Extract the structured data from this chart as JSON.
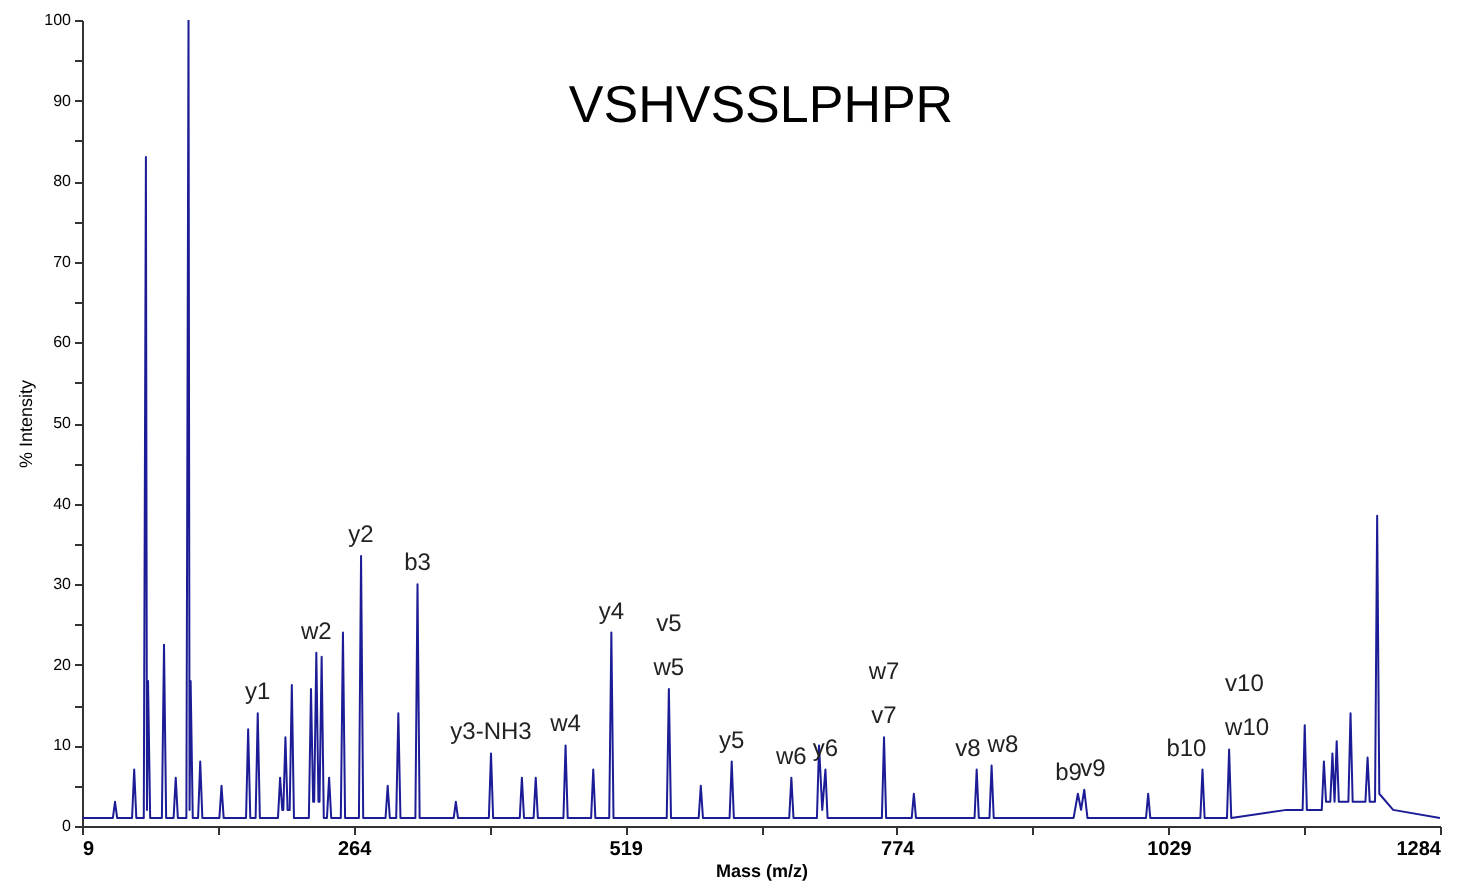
{
  "chart_data": {
    "type": "line",
    "title": "VSHVSSLPHPR",
    "xlabel": "Mass (m/z)",
    "ylabel": "% Intensity",
    "x": [
      9,
      38,
      40,
      42,
      56,
      58,
      60,
      67,
      69,
      70,
      71,
      73,
      84,
      86,
      88,
      95,
      97,
      99,
      107,
      109,
      110,
      111,
      113,
      118,
      120,
      122,
      138,
      140,
      142,
      163,
      165,
      167,
      172,
      174,
      176,
      193,
      195,
      197,
      198,
      200,
      202,
      204,
      206,
      208,
      222,
      224,
      226,
      227,
      229,
      231,
      232,
      234,
      236,
      239,
      241,
      243,
      252,
      254,
      256,
      269,
      271,
      273,
      294,
      296,
      298,
      304,
      306,
      308,
      322,
      324,
      326,
      358,
      360,
      362,
      391,
      393,
      395,
      420,
      422,
      424,
      433,
      435,
      437,
      461,
      463,
      465,
      487,
      489,
      491,
      504,
      506,
      508,
      558,
      560,
      562,
      588,
      590,
      592,
      617,
      619,
      621,
      673,
      675,
      677,
      699,
      701,
      704,
      707,
      709,
      760,
      762,
      764,
      788,
      790,
      792,
      847,
      849,
      851,
      861,
      863,
      865,
      940,
      944,
      947,
      950,
      953,
      1008,
      1010,
      1012,
      1059,
      1061,
      1063,
      1084,
      1086,
      1088,
      1140,
      1155,
      1157,
      1159,
      1173,
      1175,
      1177,
      1181,
      1183,
      1185,
      1187,
      1189,
      1198,
      1200,
      1202,
      1214,
      1216,
      1218,
      1223,
      1225,
      1227,
      1240,
      1284
    ],
    "values": [
      1,
      1,
      3,
      1,
      1,
      7,
      1,
      1,
      83,
      2,
      18,
      1,
      1,
      22.5,
      1,
      1,
      6,
      1,
      1,
      100,
      2,
      18,
      1,
      1,
      8,
      1,
      1,
      5,
      1,
      1,
      12,
      1,
      1,
      14,
      1,
      1,
      6,
      2,
      2,
      11,
      2,
      2,
      17.5,
      1,
      1,
      17,
      3,
      3,
      21.5,
      3,
      3,
      21,
      1,
      1,
      6,
      1,
      1,
      24,
      1,
      1,
      33.5,
      1,
      1,
      5,
      1,
      1,
      14,
      1,
      1,
      30,
      1,
      1,
      3,
      1,
      1,
      9,
      1,
      1,
      6,
      1,
      1,
      6,
      1,
      1,
      10,
      1,
      1,
      7,
      1,
      1,
      24,
      1,
      1,
      17,
      1,
      1,
      5,
      1,
      1,
      8,
      1,
      1,
      6,
      1,
      1,
      10,
      2,
      7,
      1,
      1,
      11,
      1,
      1,
      4,
      1,
      1,
      7,
      1,
      1,
      7.5,
      1,
      1,
      4,
      2,
      4.5,
      1,
      1,
      4,
      1,
      1,
      7,
      1,
      1,
      9.5,
      1,
      2,
      2,
      12.5,
      2,
      2,
      8,
      3,
      3,
      9,
      3,
      10.5,
      3,
      3,
      14,
      3,
      3,
      8.5,
      3,
      3,
      38.5,
      4,
      2,
      1
    ],
    "color": "#1c1c96",
    "xlim": [
      9,
      1284
    ],
    "xticks": [
      9,
      {
        "value": 136.5,
        "label": null
      },
      264,
      {
        "value": 391.5,
        "label": null
      },
      519,
      {
        "value": 646.5,
        "label": null
      },
      774,
      {
        "value": 901.5,
        "label": null
      },
      1029,
      {
        "value": 1156.5,
        "label": null
      },
      1284
    ],
    "ylim": [
      0,
      100
    ],
    "yticks": [
      0,
      {
        "value": 5,
        "label": null
      },
      10,
      {
        "value": 15,
        "label": null
      },
      20,
      {
        "value": 25,
        "label": null
      },
      30,
      {
        "value": 35,
        "label": null
      },
      40,
      {
        "value": 45,
        "label": null
      },
      50,
      {
        "value": 55,
        "label": null
      },
      60,
      {
        "value": 65,
        "label": null
      },
      70,
      {
        "value": 75,
        "label": null
      },
      80,
      {
        "value": 85,
        "label": null
      },
      90,
      {
        "value": 95,
        "label": null
      },
      100
    ],
    "grid": false,
    "marker": "none",
    "line_style": "solid",
    "annotations": [
      {
        "text": "y1",
        "x": 174,
        "y": 14
      },
      {
        "text": "w2",
        "x": 229,
        "y": 21.5
      },
      {
        "text": "y2",
        "x": 271,
        "y": 33.5
      },
      {
        "text": "b3",
        "x": 324,
        "y": 30
      },
      {
        "text": "y3-NH3",
        "x": 393,
        "y": 9
      },
      {
        "text": "w4",
        "x": 463,
        "y": 10
      },
      {
        "text": "y4",
        "x": 506,
        "y": 24
      },
      {
        "text": "w5",
        "x": 560,
        "y": 17
      },
      {
        "text": "v5",
        "x": 560,
        "y": 17
      },
      {
        "text": "y5",
        "x": 619,
        "y": 8
      },
      {
        "text": "w6",
        "x": 675,
        "y": 6
      },
      {
        "text": "y6",
        "x": 707,
        "y": 7
      },
      {
        "text": "v7",
        "x": 762,
        "y": 11
      },
      {
        "text": "w7",
        "x": 762,
        "y": 11
      },
      {
        "text": "v8",
        "x": 849,
        "y": 7
      },
      {
        "text": "w8",
        "x": 863,
        "y": 7.5
      },
      {
        "text": "b9",
        "x": 944,
        "y": 4
      },
      {
        "text": "v9",
        "x": 950,
        "y": 4.5
      },
      {
        "text": "b10",
        "x": 1061,
        "y": 7
      },
      {
        "text": "w10",
        "x": 1086,
        "y": 9.5
      },
      {
        "text": "v10",
        "x": 1086,
        "y": 9.5
      }
    ]
  }
}
